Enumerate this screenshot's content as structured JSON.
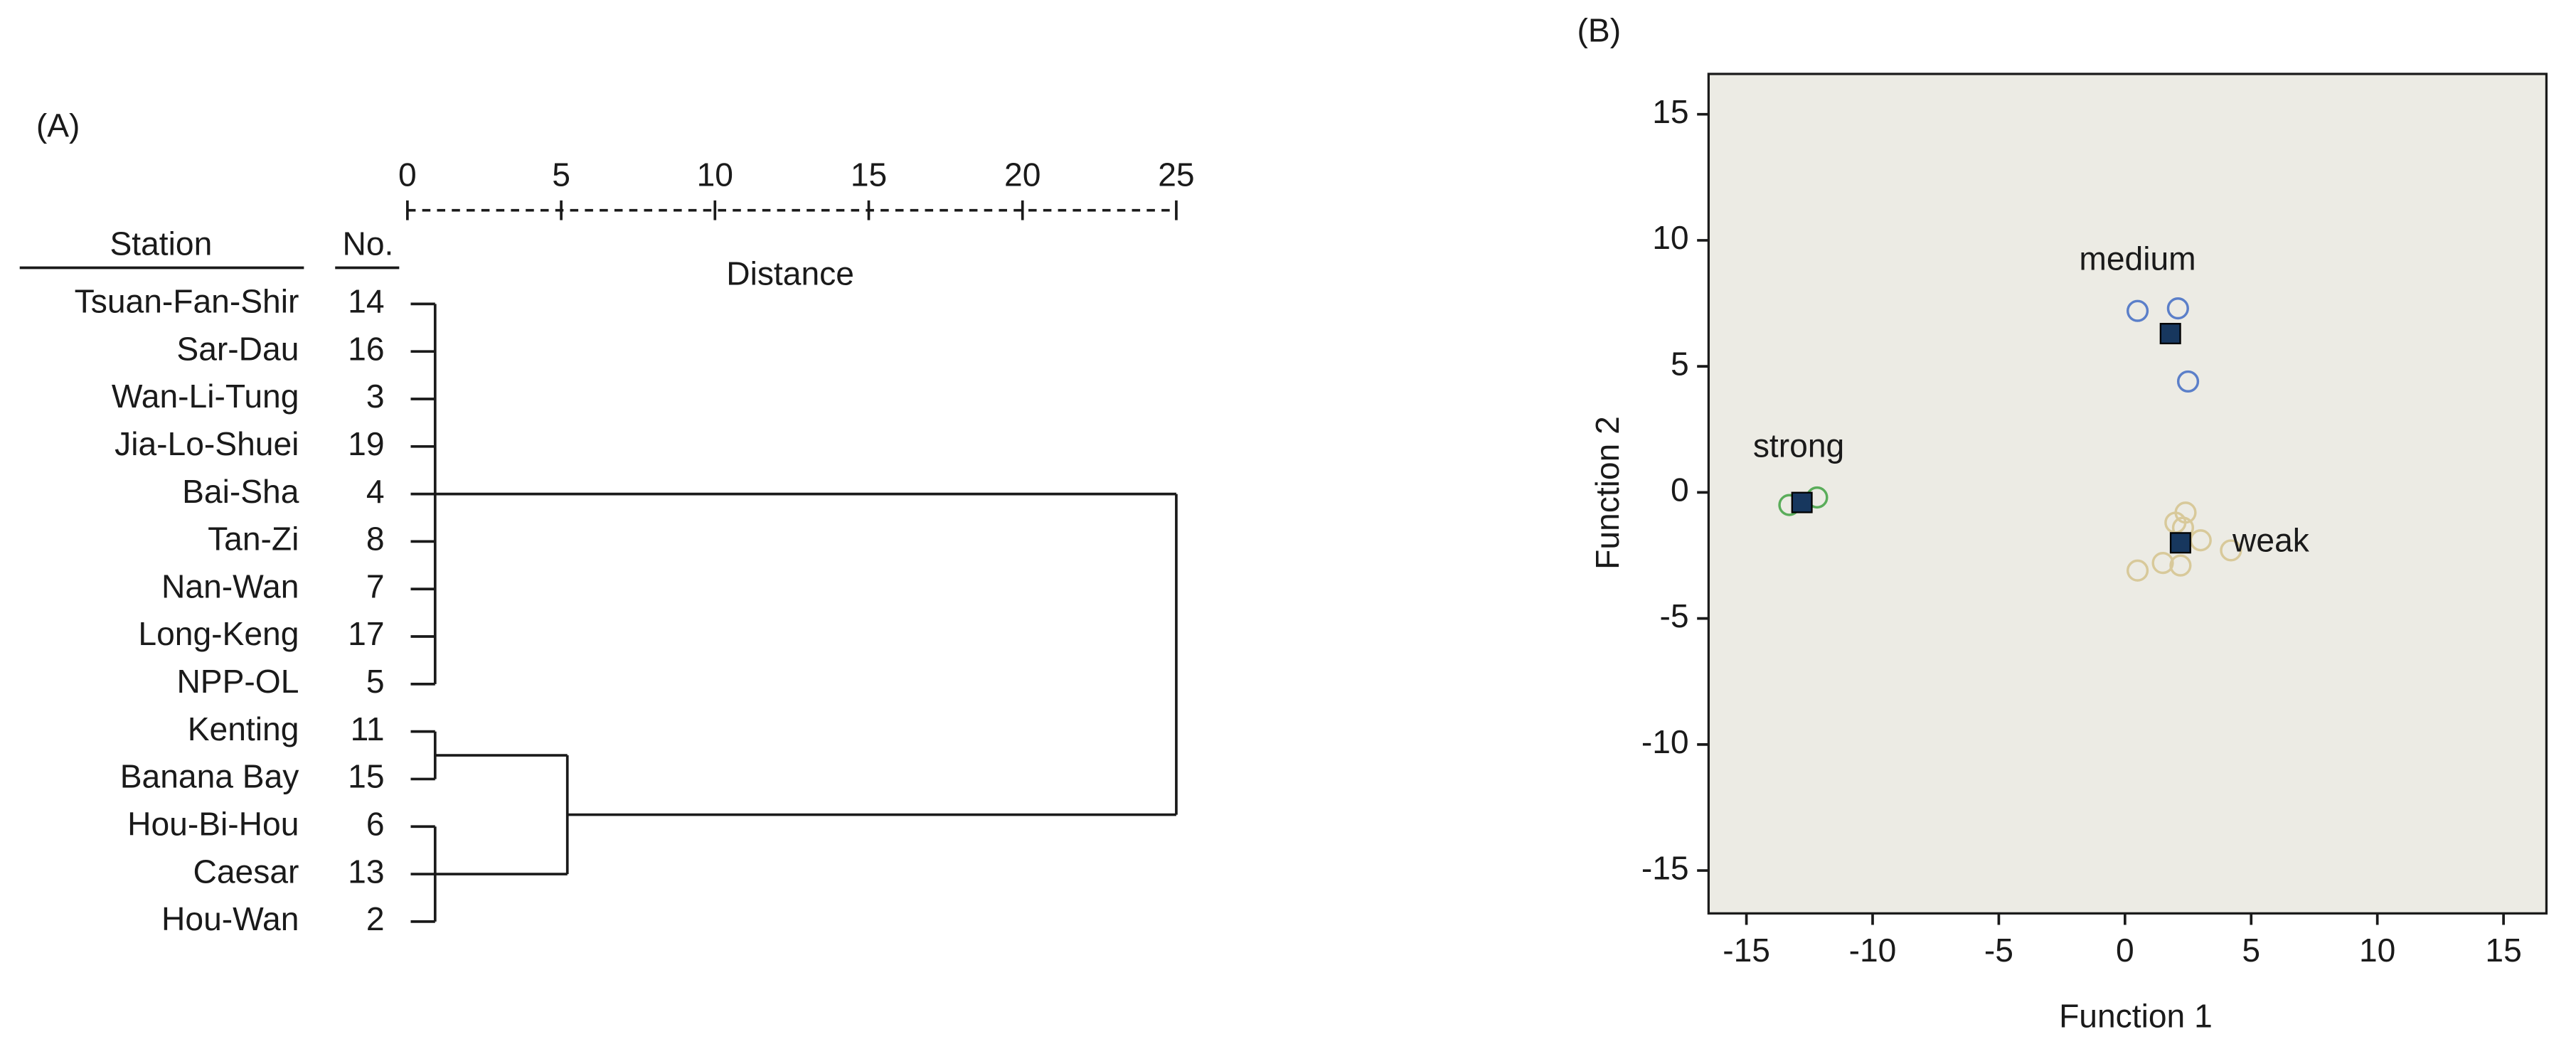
{
  "chart_data": [
    {
      "type": "dendrogram",
      "panel": "(A)",
      "xlabel": "Distance",
      "leaf_header": "Station",
      "number_header": "No.",
      "xlim": [
        0,
        25
      ],
      "xticks": [
        0,
        5,
        10,
        15,
        20,
        25
      ],
      "leaves": [
        "Tsuan-Fan-Shir",
        "Sar-Dau",
        "Wan-Li-Tung",
        "Jia-Lo-Shuei",
        "Bai-Sha",
        "Tan-Zi",
        "Nan-Wan",
        "Long-Keng",
        "NPP-OL",
        "Kenting",
        "Banana Bay",
        "Hou-Bi-Hou",
        "Caesar",
        "Hou-Wan"
      ],
      "numbers": [
        14,
        16,
        3,
        19,
        4,
        8,
        7,
        17,
        5,
        11,
        15,
        6,
        13,
        2
      ],
      "merges": [
        {
          "children": [
            0,
            1,
            2,
            3,
            4,
            5,
            6,
            7,
            8
          ],
          "distance": 0.9
        },
        {
          "children": [
            9,
            10
          ],
          "distance": 0.9
        },
        {
          "children": [
            11,
            12,
            13
          ],
          "distance": 0.9
        },
        {
          "children": [
            15,
            16
          ],
          "distance": 5.2
        },
        {
          "children": [
            14,
            17
          ],
          "distance": 25
        }
      ]
    },
    {
      "type": "scatter",
      "panel": "(B)",
      "xlabel": "Function 1",
      "ylabel": "Function 2",
      "xlim": [
        -16.5,
        16.7
      ],
      "ylim": [
        -16.7,
        16.6
      ],
      "xticks": [
        -15,
        -10,
        -5,
        0,
        5,
        10,
        15
      ],
      "yticks": [
        -15,
        -10,
        -5,
        0,
        5,
        10,
        15
      ],
      "background": "#ecebe4",
      "centroid_color": "#17375e",
      "series": [
        {
          "name": "medium",
          "color": "#5b7fc9",
          "x": [
            0.5,
            2.1,
            2.5
          ],
          "y": [
            7.2,
            7.3,
            4.4
          ],
          "centroid": [
            1.8,
            6.3
          ]
        },
        {
          "name": "strong",
          "color": "#5aad5a",
          "x": [
            -13.3,
            -12.2
          ],
          "y": [
            -0.5,
            -0.2
          ],
          "centroid": [
            -12.8,
            -0.4
          ]
        },
        {
          "name": "weak",
          "color": "#d8c99a",
          "x": [
            0.5,
            1.5,
            2.0,
            2.4,
            3.0,
            4.2,
            2.2,
            2.3
          ],
          "y": [
            -3.1,
            -2.8,
            -1.2,
            -0.8,
            -1.9,
            -2.3,
            -2.9,
            -1.4
          ],
          "centroid": [
            2.2,
            -2.0
          ]
        }
      ]
    }
  ]
}
